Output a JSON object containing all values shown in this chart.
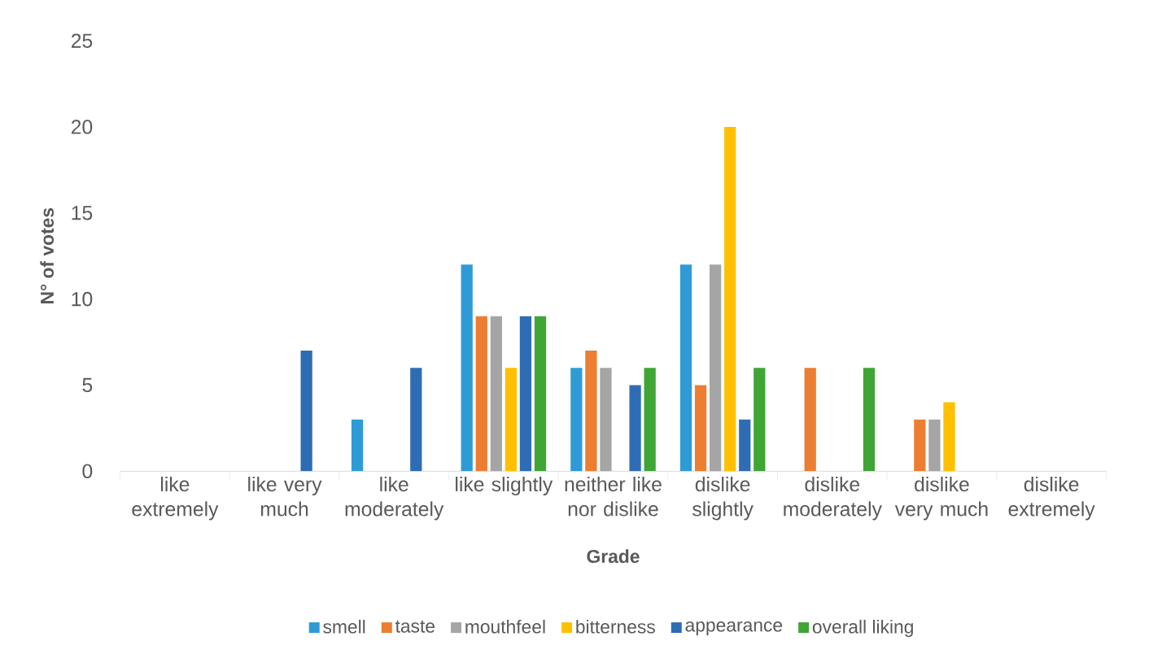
{
  "chart_data": {
    "type": "bar",
    "xlabel": "Grade",
    "ylabel": "N° of votes",
    "categories": [
      "like extremely",
      "like very much",
      "like moderately",
      "like slightly",
      "neither like nor dislike",
      "dislike slightly",
      "dislike moderately",
      "dislike very much",
      "dislike extremely"
    ],
    "series": [
      {
        "name": "smell",
        "color": "#2e9bd6",
        "values": [
          0,
          0,
          3,
          12,
          6,
          12,
          0,
          0,
          0
        ]
      },
      {
        "name": "taste",
        "color": "#ed7d31",
        "values": [
          0,
          0,
          0,
          9,
          7,
          5,
          6,
          3,
          0
        ]
      },
      {
        "name": "mouthfeel",
        "color": "#a5a5a5",
        "values": [
          0,
          0,
          0,
          9,
          6,
          12,
          0,
          3,
          0
        ]
      },
      {
        "name": "bitterness",
        "color": "#ffc000",
        "values": [
          0,
          0,
          0,
          6,
          0,
          20,
          0,
          4,
          0
        ]
      },
      {
        "name": "appearance",
        "color": "#2e6db4",
        "values": [
          0,
          7,
          6,
          9,
          5,
          3,
          0,
          0,
          0
        ]
      },
      {
        "name": "overall liking",
        "color": "#3fa535",
        "values": [
          0,
          0,
          0,
          9,
          6,
          6,
          6,
          0,
          0
        ]
      }
    ],
    "ylim": [
      0,
      25
    ],
    "yticks": [
      0,
      5,
      10,
      15,
      20,
      25
    ],
    "legend": "bottom"
  }
}
